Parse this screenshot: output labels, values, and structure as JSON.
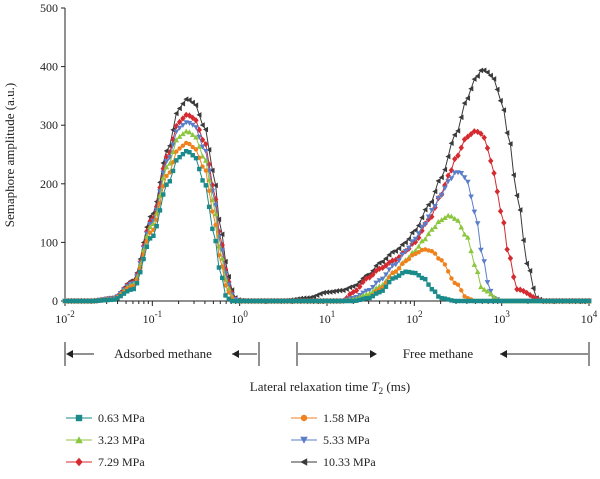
{
  "chart_data": {
    "type": "line",
    "title": "",
    "xlabel_main": "Lateral relaxation time ",
    "xlabel_var": "T",
    "xlabel_sub": "2",
    "xlabel_unit": " (ms)",
    "ylabel": "Semaphore amplitude (a.u.)",
    "x_scale": "log",
    "xlim": [
      0.01,
      10000
    ],
    "ylim": [
      0,
      500
    ],
    "grid": false,
    "legend_position": "bottom",
    "yticks": [
      "0",
      "100",
      "200",
      "300",
      "400",
      "500"
    ],
    "xticks": [
      {
        "base": "10",
        "exp": "-2"
      },
      {
        "base": "10",
        "exp": "-1"
      },
      {
        "base": "10",
        "exp": "0"
      },
      {
        "base": "10",
        "exp": "1"
      },
      {
        "base": "10",
        "exp": "2"
      },
      {
        "base": "10",
        "exp": "3"
      },
      {
        "base": "10",
        "exp": "4"
      }
    ],
    "annotations": {
      "adsorbed": "Adsorbed methane",
      "free": "Free methane"
    },
    "series": [
      {
        "name": "0.63 MPa",
        "color": "#1a8a8a",
        "marker": "square",
        "x": [
          0.01,
          0.02,
          0.035,
          0.06,
          0.1,
          0.15,
          0.2,
          0.25,
          0.3,
          0.4,
          0.5,
          0.6,
          0.7,
          0.8,
          1,
          1.5,
          3,
          6,
          10,
          15,
          20,
          30,
          40,
          60,
          80,
          100,
          130,
          160,
          200,
          300,
          500,
          1000,
          3000,
          10000
        ],
        "y": [
          0,
          0,
          2,
          20,
          110,
          200,
          245,
          256,
          248,
          200,
          120,
          50,
          8,
          0,
          0,
          0,
          0,
          0,
          0,
          0,
          0,
          5,
          15,
          40,
          50,
          48,
          38,
          20,
          5,
          0,
          0,
          0,
          0,
          0
        ]
      },
      {
        "name": "1.58 MPa",
        "color": "#f0821e",
        "marker": "circle",
        "x": [
          0.01,
          0.02,
          0.035,
          0.06,
          0.1,
          0.15,
          0.2,
          0.25,
          0.3,
          0.4,
          0.5,
          0.6,
          0.7,
          0.8,
          0.9,
          1.5,
          3,
          6,
          10,
          15,
          20,
          30,
          40,
          60,
          80,
          100,
          130,
          160,
          200,
          300,
          400,
          500,
          1000,
          3000,
          10000
        ],
        "y": [
          0,
          0,
          3,
          25,
          120,
          215,
          260,
          270,
          262,
          225,
          150,
          70,
          25,
          5,
          0,
          0,
          0,
          0,
          0,
          0,
          0,
          5,
          20,
          50,
          68,
          80,
          88,
          85,
          70,
          30,
          5,
          0,
          0,
          0,
          0
        ]
      },
      {
        "name": "3.23 MPa",
        "color": "#8cc63e",
        "marker": "triangle-up",
        "x": [
          0.01,
          0.02,
          0.035,
          0.06,
          0.1,
          0.15,
          0.2,
          0.25,
          0.3,
          0.4,
          0.5,
          0.6,
          0.7,
          0.8,
          0.9,
          1.5,
          3,
          6,
          10,
          15,
          20,
          30,
          40,
          60,
          80,
          100,
          130,
          160,
          200,
          250,
          300,
          400,
          500,
          600,
          1000,
          3000,
          10000
        ],
        "y": [
          0,
          0,
          3,
          28,
          130,
          230,
          280,
          290,
          283,
          242,
          170,
          85,
          35,
          8,
          0,
          0,
          0,
          0,
          0,
          0,
          3,
          12,
          25,
          50,
          70,
          85,
          105,
          122,
          138,
          146,
          140,
          110,
          60,
          20,
          0,
          0,
          0
        ]
      },
      {
        "name": "5.33 MPa",
        "color": "#5b7ec8",
        "marker": "triangle-down",
        "x": [
          0.01,
          0.02,
          0.035,
          0.06,
          0.1,
          0.15,
          0.2,
          0.25,
          0.3,
          0.4,
          0.5,
          0.6,
          0.7,
          0.8,
          0.9,
          1,
          1.5,
          3,
          6,
          10,
          15,
          20,
          30,
          40,
          60,
          80,
          100,
          130,
          160,
          200,
          250,
          300,
          350,
          400,
          500,
          600,
          700,
          800,
          1000,
          3000,
          10000
        ],
        "y": [
          0,
          0,
          4,
          30,
          135,
          240,
          295,
          305,
          300,
          258,
          185,
          100,
          45,
          12,
          3,
          0,
          0,
          0,
          0,
          0,
          0,
          5,
          18,
          35,
          62,
          85,
          105,
          130,
          155,
          180,
          205,
          220,
          218,
          205,
          150,
          80,
          30,
          5,
          0,
          0,
          0
        ]
      },
      {
        "name": "7.29 MPa",
        "color": "#d42a30",
        "marker": "diamond",
        "x": [
          0.01,
          0.02,
          0.035,
          0.06,
          0.1,
          0.15,
          0.2,
          0.25,
          0.3,
          0.4,
          0.5,
          0.6,
          0.7,
          0.8,
          0.9,
          1,
          1.5,
          3,
          6,
          10,
          15,
          20,
          30,
          40,
          60,
          80,
          100,
          150,
          200,
          250,
          300,
          400,
          500,
          600,
          700,
          800,
          1000,
          1200,
          1500,
          3000,
          10000
        ],
        "y": [
          0,
          0,
          4,
          32,
          140,
          248,
          305,
          318,
          312,
          270,
          195,
          110,
          52,
          15,
          3,
          0,
          0,
          0,
          0,
          0,
          0,
          15,
          40,
          55,
          70,
          85,
          100,
          140,
          180,
          215,
          245,
          280,
          290,
          285,
          260,
          220,
          150,
          80,
          20,
          0,
          0
        ]
      },
      {
        "name": "10.33 MPa",
        "color": "#3a3a3a",
        "marker": "triangle-left",
        "x": [
          0.01,
          0.02,
          0.035,
          0.06,
          0.1,
          0.15,
          0.2,
          0.25,
          0.3,
          0.4,
          0.5,
          0.6,
          0.7,
          0.8,
          0.9,
          1,
          1.2,
          1.5,
          3,
          6,
          10,
          15,
          20,
          30,
          40,
          60,
          80,
          100,
          150,
          200,
          300,
          400,
          500,
          600,
          700,
          800,
          1000,
          1200,
          1500,
          2000,
          2500,
          3000,
          10000
        ],
        "y": [
          0,
          0,
          5,
          35,
          148,
          258,
          328,
          345,
          338,
          295,
          220,
          130,
          65,
          20,
          5,
          1,
          0,
          0,
          0,
          5,
          15,
          18,
          25,
          45,
          65,
          85,
          100,
          120,
          165,
          210,
          285,
          345,
          380,
          395,
          390,
          380,
          340,
          280,
          180,
          60,
          5,
          0,
          0
        ]
      }
    ]
  }
}
